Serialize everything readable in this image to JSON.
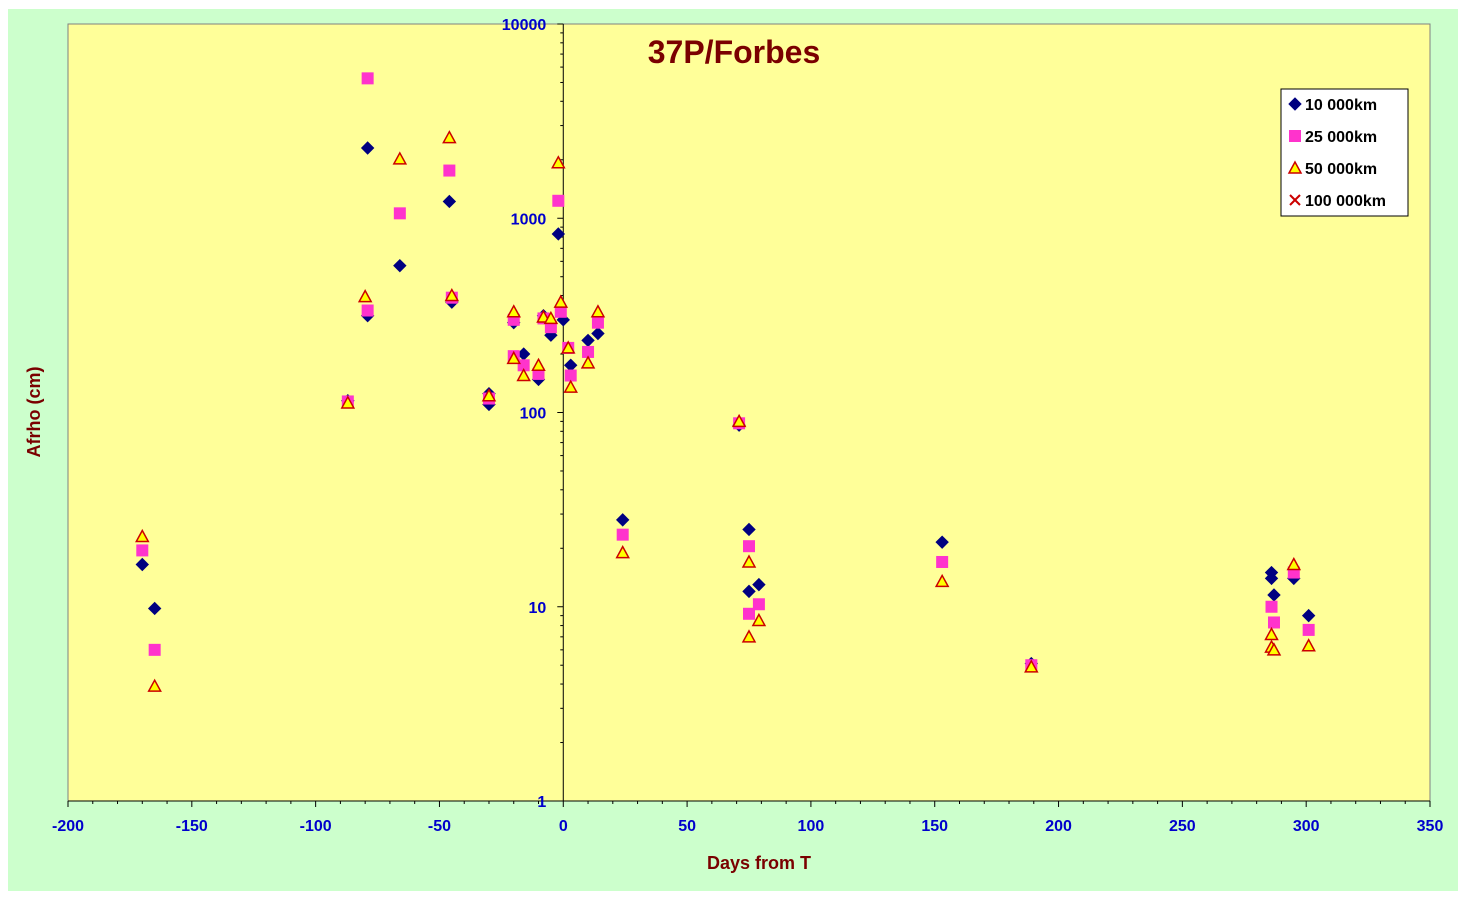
{
  "chart_data": {
    "type": "scatter",
    "title": "37P/Forbes",
    "xlabel": "Days from T",
    "ylabel": "Afrho (cm)",
    "xlim": [
      -200,
      350
    ],
    "ylim": [
      1,
      10000
    ],
    "y_scale": "log",
    "x_ticks": [
      -200,
      -150,
      -100,
      -50,
      0,
      50,
      100,
      150,
      200,
      250,
      300,
      350
    ],
    "x_tick_labels": [
      "-200",
      "-150",
      "-100",
      "-50",
      "0",
      "50",
      "100",
      "150",
      "200",
      "250",
      "300",
      "350"
    ],
    "y_ticks": [
      1,
      10,
      100,
      1000,
      10000
    ],
    "y_tick_labels": [
      "1",
      "10",
      "100",
      "1000",
      "10000"
    ],
    "grid": false,
    "legend_position": "top-right",
    "colors": {
      "outer_background": "#ccffcc",
      "plot_background": "#ffff99",
      "title": "#7a0000",
      "ticks": "#0000cc"
    },
    "series": [
      {
        "name": "10 000km",
        "marker": "diamond",
        "color": "#000080",
        "points": [
          [
            -170,
            16.5
          ],
          [
            -165,
            9.8
          ],
          [
            -87,
            115
          ],
          [
            -79,
            315
          ],
          [
            -79,
            2300
          ],
          [
            -66,
            570
          ],
          [
            -46,
            1220
          ],
          [
            -45,
            370
          ],
          [
            -30,
            110
          ],
          [
            -30,
            125
          ],
          [
            -20,
            290
          ],
          [
            -16,
            200
          ],
          [
            -10,
            148
          ],
          [
            -8,
            315
          ],
          [
            -5,
            250
          ],
          [
            -2,
            830
          ],
          [
            0,
            300
          ],
          [
            3,
            175
          ],
          [
            10,
            235
          ],
          [
            14,
            255
          ],
          [
            24,
            28
          ],
          [
            71,
            86
          ],
          [
            75,
            25
          ],
          [
            75,
            12
          ],
          [
            79,
            13
          ],
          [
            153,
            21.5
          ],
          [
            189,
            5.1
          ],
          [
            286,
            15
          ],
          [
            286,
            14
          ],
          [
            287,
            11.5
          ],
          [
            295,
            14
          ],
          [
            301,
            9
          ]
        ]
      },
      {
        "name": "25 000km",
        "marker": "square",
        "color": "#ff33cc",
        "points": [
          [
            -170,
            19.5
          ],
          [
            -165,
            6
          ],
          [
            -87,
            114
          ],
          [
            -79,
            335
          ],
          [
            -79,
            5250
          ],
          [
            -66,
            1060
          ],
          [
            -46,
            1760
          ],
          [
            -45,
            390
          ],
          [
            -30,
            118
          ],
          [
            -20,
            195
          ],
          [
            -20,
            300
          ],
          [
            -16,
            175
          ],
          [
            -10,
            158
          ],
          [
            -8,
            305
          ],
          [
            -5,
            275
          ],
          [
            -2,
            1230
          ],
          [
            -1,
            330
          ],
          [
            2,
            215
          ],
          [
            3,
            155
          ],
          [
            10,
            205
          ],
          [
            14,
            290
          ],
          [
            24,
            23.5
          ],
          [
            71,
            88
          ],
          [
            75,
            20.5
          ],
          [
            75,
            9.2
          ],
          [
            79,
            10.3
          ],
          [
            153,
            17
          ],
          [
            189,
            5
          ],
          [
            286,
            10
          ],
          [
            287,
            8.3
          ],
          [
            295,
            15
          ],
          [
            301,
            7.6
          ]
        ]
      },
      {
        "name": "50 000km",
        "marker": "triangle",
        "color": "#ff9900",
        "points": [
          [
            -170,
            23
          ],
          [
            -165,
            3.9
          ],
          [
            -87,
            112
          ],
          [
            -80,
            395
          ],
          [
            -66,
            2020
          ],
          [
            -46,
            2600
          ],
          [
            -45,
            400
          ],
          [
            -30,
            122
          ],
          [
            -20,
            330
          ],
          [
            -20,
            190
          ],
          [
            -16,
            155
          ],
          [
            -10,
            175
          ],
          [
            -8,
            310
          ],
          [
            -5,
            305
          ],
          [
            -2,
            1930
          ],
          [
            -1,
            370
          ],
          [
            2,
            215
          ],
          [
            3,
            135
          ],
          [
            10,
            180
          ],
          [
            14,
            330
          ],
          [
            24,
            19
          ],
          [
            71,
            90
          ],
          [
            75,
            17
          ],
          [
            75,
            7
          ],
          [
            79,
            8.5
          ],
          [
            153,
            13.5
          ],
          [
            189,
            4.9
          ],
          [
            286,
            7.2
          ],
          [
            286,
            6.2
          ],
          [
            287,
            6
          ],
          [
            295,
            16.5
          ],
          [
            301,
            6.3
          ]
        ]
      },
      {
        "name": "100 000km",
        "marker": "x",
        "color": "#cc0000",
        "points": []
      }
    ]
  }
}
